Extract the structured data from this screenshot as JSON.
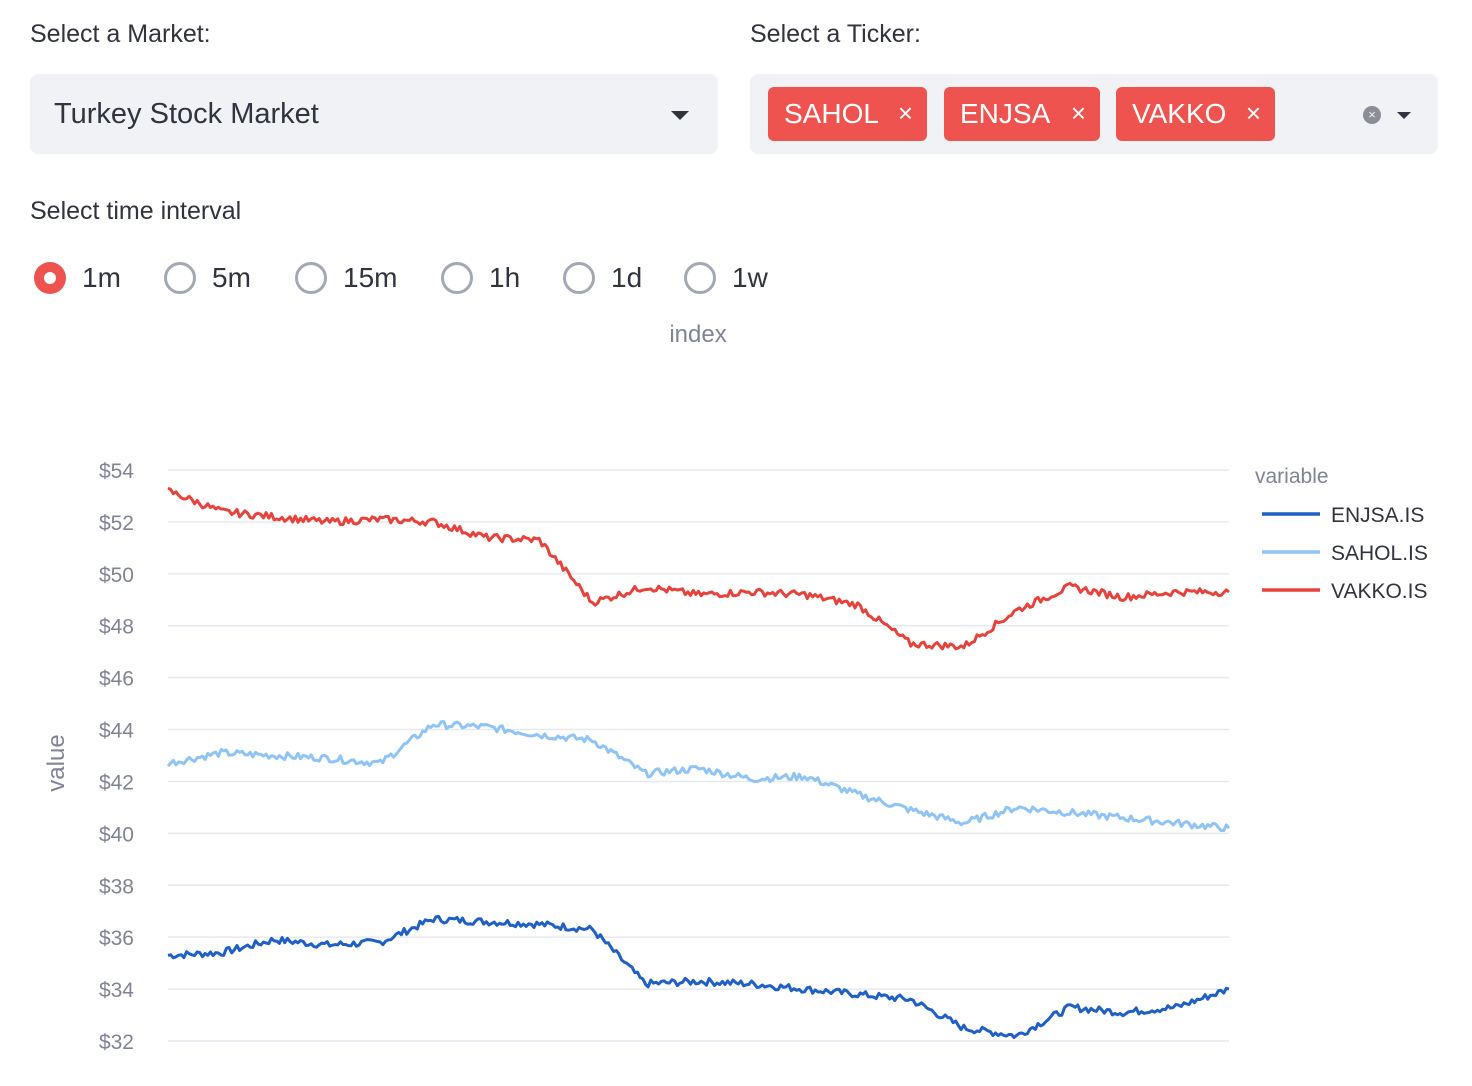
{
  "market": {
    "label": "Select a Market:",
    "value": "Turkey Stock Market"
  },
  "ticker": {
    "label": "Select a Ticker:",
    "tags": [
      "SAHOL",
      "ENJSA",
      "VAKKO"
    ],
    "remove_symbol": "×",
    "clear_symbol": "×"
  },
  "interval": {
    "label": "Select time interval",
    "options": [
      "1m",
      "5m",
      "15m",
      "1h",
      "1d",
      "1w"
    ],
    "selected": "1m"
  },
  "colors": {
    "accent": "#ef5350",
    "enjsa": "#1f5fc6",
    "sahol": "#90c4f5",
    "vakko": "#e8423d"
  },
  "chart_data": {
    "type": "line",
    "top_axis_label": "index",
    "ylabel": "value",
    "ylim": [
      32,
      54
    ],
    "yticks": [
      "$32",
      "$34",
      "$36",
      "$38",
      "$40",
      "$42",
      "$44",
      "$46",
      "$48",
      "$50",
      "$52",
      "$54"
    ],
    "grid": true,
    "legend_title": "variable",
    "legend_position": "top-right",
    "x": [
      0,
      0.05,
      0.1,
      0.15,
      0.2,
      0.25,
      0.3,
      0.35,
      0.4,
      0.45,
      0.5,
      0.55,
      0.6,
      0.65,
      0.7,
      0.75,
      0.8,
      0.85,
      0.9,
      0.95,
      1.0
    ],
    "series": [
      {
        "name": "ENJSA.IS",
        "values": [
          35.3,
          35.4,
          35.9,
          35.7,
          35.8,
          36.7,
          36.6,
          36.5,
          36.3,
          34.2,
          34.3,
          34.2,
          34.0,
          33.8,
          33.6,
          32.5,
          32.2,
          33.3,
          33.1,
          33.3,
          34.0
        ]
      },
      {
        "name": "SAHOL.IS",
        "values": [
          42.7,
          43.1,
          43.0,
          42.9,
          42.7,
          44.2,
          44.1,
          43.8,
          43.6,
          42.3,
          42.5,
          42.1,
          42.2,
          41.5,
          40.9,
          40.4,
          41.0,
          40.8,
          40.6,
          40.4,
          40.2
        ]
      },
      {
        "name": "VAKKO.IS",
        "values": [
          53.2,
          52.4,
          52.2,
          52.0,
          52.1,
          52.0,
          51.4,
          51.3,
          48.9,
          49.5,
          49.2,
          49.3,
          49.2,
          48.8,
          47.3,
          47.2,
          48.6,
          49.5,
          49.1,
          49.3,
          49.3
        ]
      }
    ]
  }
}
